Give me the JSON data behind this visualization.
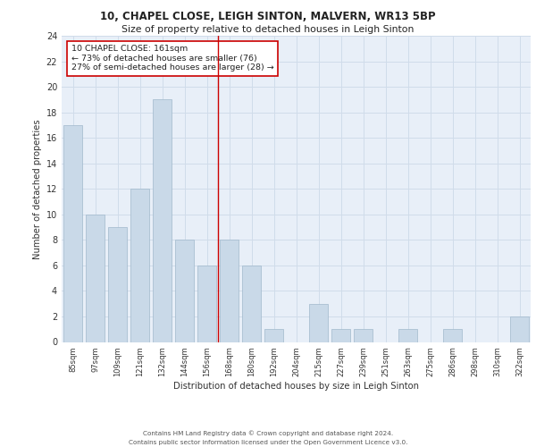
{
  "title1": "10, CHAPEL CLOSE, LEIGH SINTON, MALVERN, WR13 5BP",
  "title2": "Size of property relative to detached houses in Leigh Sinton",
  "xlabel": "Distribution of detached houses by size in Leigh Sinton",
  "ylabel": "Number of detached properties",
  "categories": [
    "85sqm",
    "97sqm",
    "109sqm",
    "121sqm",
    "132sqm",
    "144sqm",
    "156sqm",
    "168sqm",
    "180sqm",
    "192sqm",
    "204sqm",
    "215sqm",
    "227sqm",
    "239sqm",
    "251sqm",
    "263sqm",
    "275sqm",
    "286sqm",
    "298sqm",
    "310sqm",
    "322sqm"
  ],
  "values": [
    17,
    10,
    9,
    12,
    19,
    8,
    6,
    8,
    6,
    1,
    0,
    3,
    1,
    1,
    0,
    1,
    0,
    1,
    0,
    0,
    2
  ],
  "bar_color": "#c9d9e8",
  "bar_edge_color": "#a0b8cc",
  "grid_color": "#d0dcea",
  "background_color": "#e8eff8",
  "vline_x": 6.5,
  "vline_color": "#cc0000",
  "annotation_text": "10 CHAPEL CLOSE: 161sqm\n← 73% of detached houses are smaller (76)\n27% of semi-detached houses are larger (28) →",
  "annotation_box_color": "#ffffff",
  "annotation_box_edge": "#cc0000",
  "ylim": [
    0,
    24
  ],
  "yticks": [
    0,
    2,
    4,
    6,
    8,
    10,
    12,
    14,
    16,
    18,
    20,
    22,
    24
  ],
  "footer1": "Contains HM Land Registry data © Crown copyright and database right 2024.",
  "footer2": "Contains public sector information licensed under the Open Government Licence v3.0."
}
